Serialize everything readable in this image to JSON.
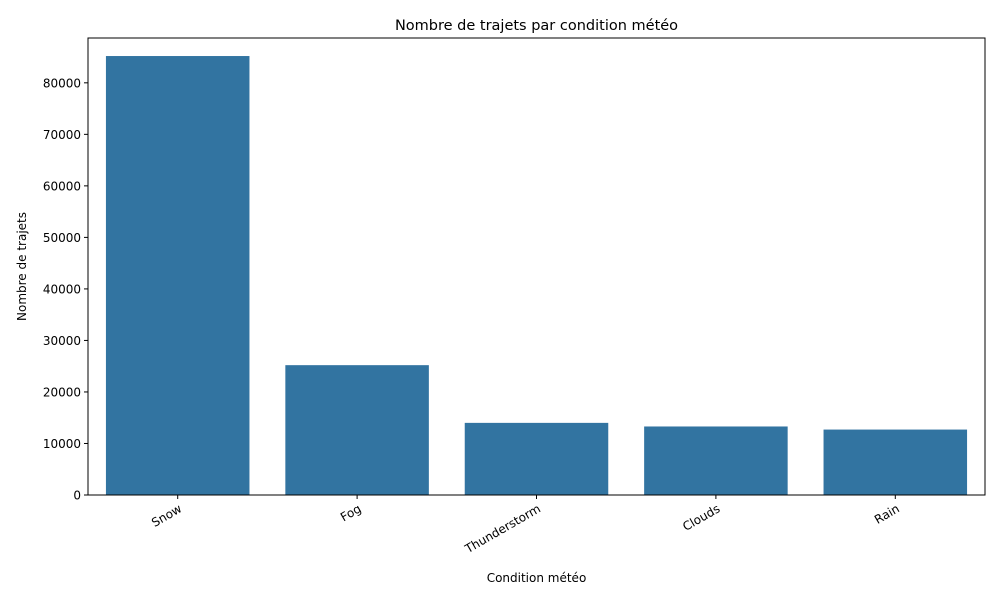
{
  "chart_data": {
    "type": "bar",
    "title": "Nombre de trajets par condition météo",
    "xlabel": "Condition météo",
    "ylabel": "Nombre de trajets",
    "categories": [
      "Snow",
      "Fog",
      "Thunderstorm",
      "Clouds",
      "Rain"
    ],
    "values": [
      85200,
      25200,
      14000,
      13300,
      12700
    ],
    "ylim": [
      0,
      88700
    ],
    "yticks": [
      0,
      10000,
      20000,
      30000,
      40000,
      50000,
      60000,
      70000,
      80000
    ],
    "ytick_labels": [
      "0",
      "10000",
      "20000",
      "30000",
      "40000",
      "50000",
      "60000",
      "70000",
      "80000"
    ],
    "bar_color": "#3274a1",
    "x_tick_rotation_deg": 30,
    "grid": false,
    "legend": "none"
  }
}
